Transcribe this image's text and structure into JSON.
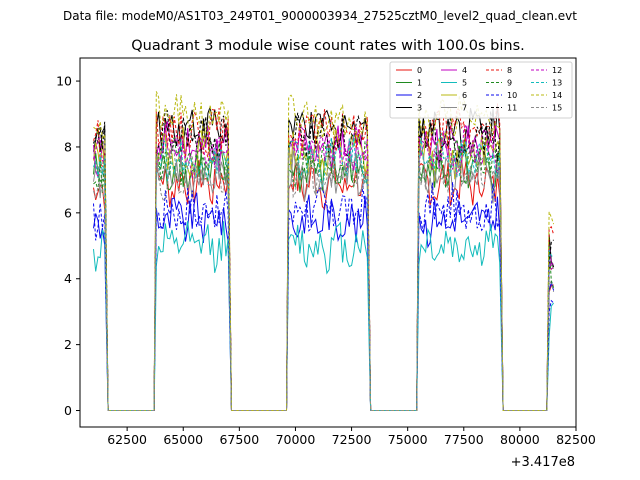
{
  "figure": {
    "suptitle": "Data file: modeM0/AS1T03_249T01_9000003934_27525cztM0_level2_quad_clean.evt"
  },
  "chart_data": {
    "type": "line",
    "title": "Quadrant 3 module wise count rates with 100.0s bins.",
    "xlabel": "",
    "ylabel": "",
    "x_offset_label": "+3.417e8",
    "xlim": [
      60400,
      82500
    ],
    "ylim": [
      -0.5,
      10.7
    ],
    "xticks": [
      62500,
      65000,
      67500,
      70000,
      72500,
      75000,
      77500,
      80000,
      82500
    ],
    "xtick_labels": [
      "62500",
      "65000",
      "67500",
      "70000",
      "72500",
      "75000",
      "77500",
      "80000",
      "82500"
    ],
    "yticks": [
      0,
      2,
      4,
      6,
      8,
      10
    ],
    "ytick_labels": [
      "0",
      "2",
      "4",
      "6",
      "8",
      "10"
    ],
    "grid": false,
    "legend_position": "top-right",
    "bin_seconds": 100,
    "segments": [
      {
        "start": 61000,
        "end": 61500,
        "zero_end": 63800
      },
      {
        "start": 63800,
        "end": 67000,
        "zero_end": 69700
      },
      {
        "start": 69700,
        "end": 73200,
        "zero_end": 75500
      },
      {
        "start": 75500,
        "end": 79100,
        "zero_end": 81300
      },
      {
        "start": 81300,
        "end": 81500,
        "zero_end": null
      }
    ],
    "series": [
      {
        "name": "0",
        "color": "#e8140f",
        "dash": "solid",
        "level": 6.9
      },
      {
        "name": "1",
        "color": "#1f8a1f",
        "dash": "solid",
        "level": 7.3
      },
      {
        "name": "2",
        "color": "#0a0aee",
        "dash": "solid",
        "level": 5.8
      },
      {
        "name": "3",
        "color": "#000000",
        "dash": "solid",
        "level": 8.6
      },
      {
        "name": "4",
        "color": "#c000c0",
        "dash": "solid",
        "level": 8.0
      },
      {
        "name": "5",
        "color": "#13bcbc",
        "dash": "solid",
        "level": 5.0
      },
      {
        "name": "6",
        "color": "#b8b810",
        "dash": "solid",
        "level": 7.8
      },
      {
        "name": "7",
        "color": "#8c8c8c",
        "dash": "solid",
        "level": 7.1
      },
      {
        "name": "8",
        "color": "#e8140f",
        "dash": "dashed",
        "level": 8.5
      },
      {
        "name": "9",
        "color": "#1f8a1f",
        "dash": "dashed",
        "level": 7.5
      },
      {
        "name": "10",
        "color": "#0a0aee",
        "dash": "dashed",
        "level": 6.1
      },
      {
        "name": "11",
        "color": "#000000",
        "dash": "dashed",
        "level": 8.3
      },
      {
        "name": "12",
        "color": "#c000c0",
        "dash": "dashed",
        "level": 7.9
      },
      {
        "name": "13",
        "color": "#13bcbc",
        "dash": "dashed",
        "level": 7.6
      },
      {
        "name": "14",
        "color": "#b8b810",
        "dash": "dashed",
        "level": 8.9
      },
      {
        "name": "15",
        "color": "#8c8c8c",
        "dash": "dashed",
        "level": 7.2
      }
    ]
  }
}
